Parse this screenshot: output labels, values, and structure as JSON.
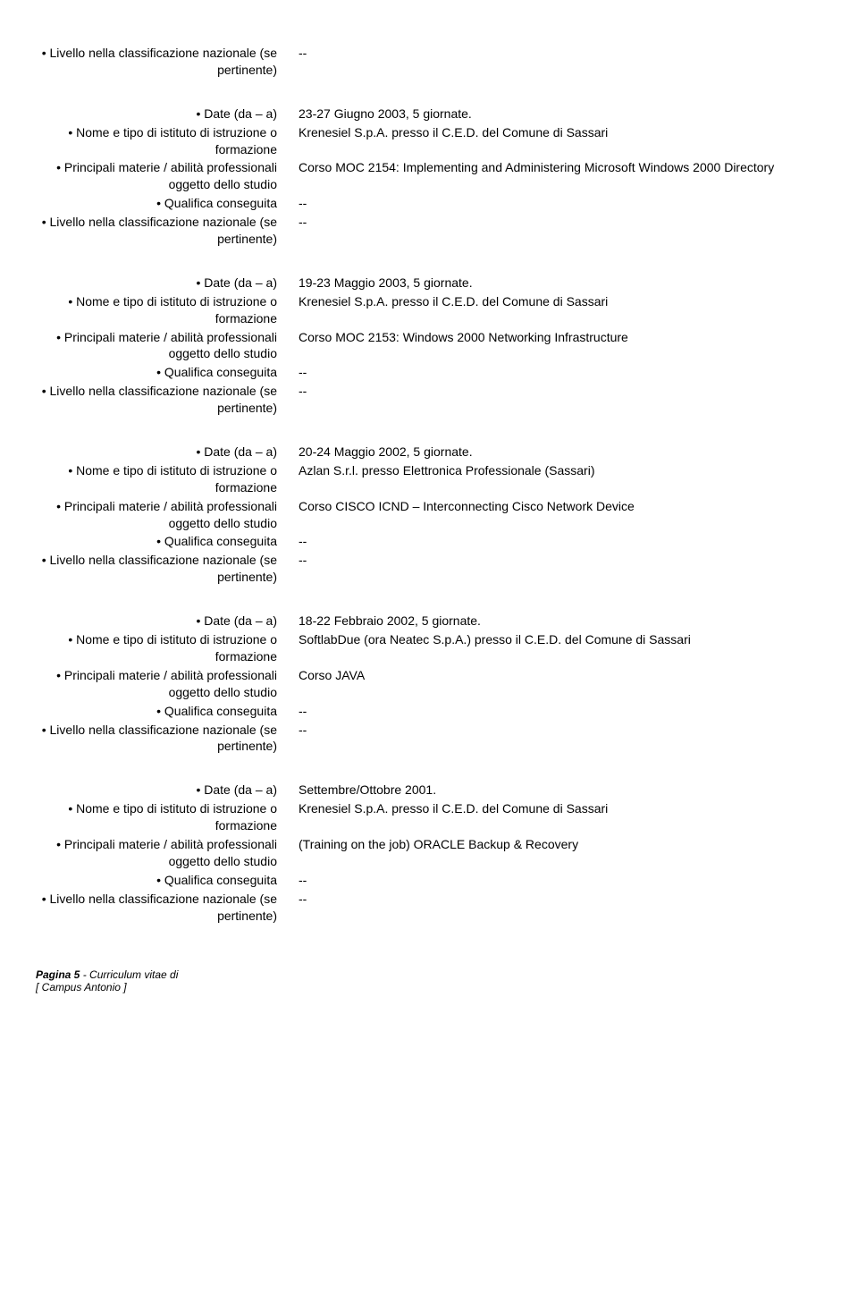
{
  "labels": {
    "livello": "• Livello nella classificazione nazionale (se pertinente)",
    "date": "• Date (da – a)",
    "nome": "• Nome e tipo di istituto di istruzione o formazione",
    "materie": "• Principali materie / abilità professionali oggetto dello studio",
    "qualifica": "• Qualifica conseguita"
  },
  "top_block": {
    "livello": "--"
  },
  "entries": [
    {
      "date": "23-27 Giugno 2003, 5 giornate.",
      "nome": "Krenesiel S.p.A. presso il C.E.D. del Comune di Sassari",
      "materie": "Corso MOC 2154: Implementing and Administering Microsoft Windows 2000 Directory",
      "qualifica": "--",
      "livello": "--"
    },
    {
      "date": "19-23 Maggio 2003, 5 giornate.",
      "nome": "Krenesiel S.p.A. presso il C.E.D. del Comune di Sassari",
      "materie": "Corso MOC 2153: Windows 2000 Networking Infrastructure",
      "qualifica": "--",
      "livello": "--"
    },
    {
      "date": "20-24 Maggio 2002, 5 giornate.",
      "nome": "Azlan S.r.l. presso Elettronica Professionale (Sassari)",
      "materie": "Corso CISCO ICND – Interconnecting Cisco Network Device",
      "qualifica": "--",
      "livello": "--"
    },
    {
      "date": "18-22 Febbraio 2002, 5 giornate.",
      "nome": "SoftlabDue (ora Neatec S.p.A.) presso il C.E.D. del Comune di Sassari",
      "materie": "Corso JAVA",
      "qualifica": "--",
      "livello": "--"
    },
    {
      "date": "Settembre/Ottobre 2001.",
      "nome": "Krenesiel S.p.A. presso il C.E.D. del Comune di Sassari",
      "materie": "(Training on the job) ORACLE Backup & Recovery",
      "qualifica": "--",
      "livello": "--"
    }
  ],
  "footer": {
    "page_prefix": "Pagina 5",
    "page_suffix": " - Curriculum vitae di",
    "name": "[ Campus Antonio ]"
  }
}
